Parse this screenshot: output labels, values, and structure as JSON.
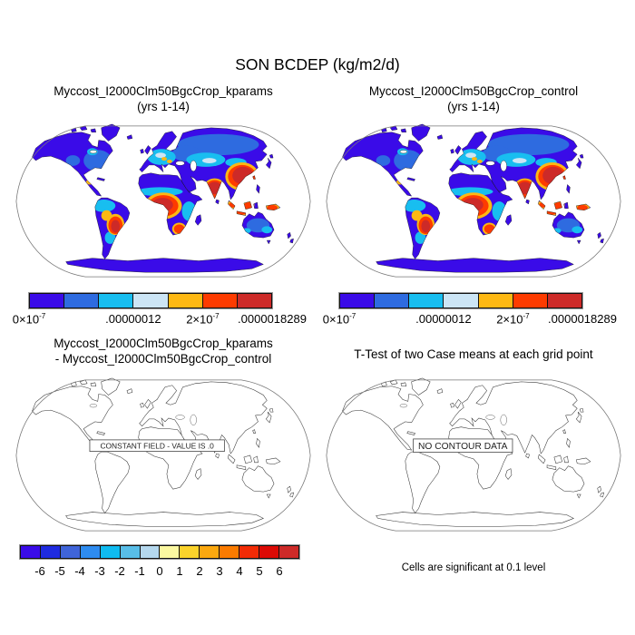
{
  "figure_title": "SON BCDEP (kg/m2/d)",
  "panels": [
    {
      "id": "kparams",
      "title1": "Myccost_I2000Clm50BgcCrop_kparams",
      "title2": "(yrs 1-14)"
    },
    {
      "id": "control",
      "title1": "Myccost_I2000Clm50BgcCrop_control",
      "title2": "(yrs 1-14)"
    },
    {
      "id": "difference",
      "title1": "Myccost_I2000Clm50BgcCrop_kparams",
      "title2": "- Myccost_I2000Clm50BgcCrop_control",
      "annotation": "CONSTANT FIELD - VALUE IS .0"
    },
    {
      "id": "ttest",
      "title1": "T-Test of two Case means at each grid point",
      "annotation": "NO CONTOUR DATA",
      "caption": "Cells are significant at 0.1 level"
    }
  ],
  "colorbar_top": {
    "colors": [
      "#3a0be8",
      "#2e6be0",
      "#18bef0",
      "#cce5f5",
      "#fdb813",
      "#fe3b00",
      "#cd2a28"
    ],
    "labels": [
      {
        "boundary": 0,
        "parts": [
          {
            "t": "0×10"
          },
          {
            "t": "-7",
            "sup": true
          }
        ]
      },
      {
        "boundary": 3,
        "parts": [
          {
            "t": ".00000012"
          }
        ]
      },
      {
        "boundary": 5,
        "parts": [
          {
            "t": "2×10"
          },
          {
            "t": "-7",
            "sup": true
          }
        ]
      },
      {
        "boundary": 7,
        "parts": [
          {
            "t": ".0000018289"
          }
        ]
      }
    ]
  },
  "colorbar_diff": {
    "colors": [
      "#3a0be8",
      "#1f2be0",
      "#3f64d9",
      "#2e8cf0",
      "#0fbbf0",
      "#58bee8",
      "#b5d8ee",
      "#fbf8a0",
      "#fbd32b",
      "#fba80f",
      "#fb7b00",
      "#f22b05",
      "#dc0a05",
      "#cd2a28"
    ],
    "labels": [
      "-6",
      "-5",
      "-4",
      "-3",
      "-2",
      "-1",
      "0",
      "1",
      "2",
      "3",
      "4",
      "5",
      "6"
    ]
  },
  "chart_data": [
    {
      "type": "heatmap",
      "subtype": "filled-contour-global-map",
      "panel": "top-left",
      "projection": "robinson",
      "title": "Myccost_I2000Clm50BgcCrop_kparams (yrs 1-14)",
      "variable": "SON BCDEP (kg/m2/d)",
      "n_color_bins": 7,
      "palette": [
        "#3a0be8",
        "#2e6be0",
        "#18bef0",
        "#cce5f5",
        "#fdb813",
        "#fe3b00",
        "#cd2a28"
      ],
      "colorbar_tick_labels": [
        "0×10^-7",
        ".00000012",
        "2×10^-7",
        ".0000018289"
      ],
      "high_value_regions": [
        "South Asia",
        "East Asia",
        "Southeast Asia",
        "Indonesia",
        "Central Africa",
        "southeastern Africa",
        "southern Brazil"
      ],
      "low_value_regions": [
        "North America",
        "Greenland",
        "Sahara",
        "Siberia",
        "Australia",
        "Antarctica"
      ],
      "ocean": "white (below lowest contour)"
    },
    {
      "type": "heatmap",
      "subtype": "filled-contour-global-map",
      "panel": "top-right",
      "projection": "robinson",
      "title": "Myccost_I2000Clm50BgcCrop_control (yrs 1-14)",
      "variable": "SON BCDEP (kg/m2/d)",
      "n_color_bins": 7,
      "palette": [
        "#3a0be8",
        "#2e6be0",
        "#18bef0",
        "#cce5f5",
        "#fdb813",
        "#fe3b00",
        "#cd2a28"
      ],
      "colorbar_tick_labels": [
        "0×10^-7",
        ".00000012",
        "2×10^-7",
        ".0000018289"
      ],
      "high_value_regions": [
        "South Asia",
        "East Asia",
        "Southeast Asia",
        "Indonesia",
        "Central Africa",
        "southeastern Africa",
        "southern Brazil"
      ],
      "low_value_regions": [
        "North America",
        "Greenland",
        "Sahara",
        "Siberia",
        "Australia",
        "Antarctica"
      ],
      "ocean": "white (below lowest contour)"
    },
    {
      "type": "heatmap",
      "subtype": "difference-map-outline-only",
      "panel": "bottom-left",
      "projection": "robinson",
      "title": "Myccost_I2000Clm50BgcCrop_kparams - Myccost_I2000Clm50BgcCrop_control",
      "annotation": "CONSTANT FIELD - VALUE IS .0",
      "n_color_bins": 14,
      "levels": [
        -6,
        -5,
        -4,
        -3,
        -2,
        -1,
        0,
        1,
        2,
        3,
        4,
        5,
        6
      ],
      "palette": [
        "#3a0be8",
        "#1f2be0",
        "#3f64d9",
        "#2e8cf0",
        "#0fbbf0",
        "#58bee8",
        "#b5d8ee",
        "#fbf8a0",
        "#fbd32b",
        "#fba80f",
        "#fb7b00",
        "#f22b05",
        "#dc0a05",
        "#cd2a28"
      ]
    },
    {
      "type": "heatmap",
      "subtype": "significance-map-outline-only",
      "panel": "bottom-right",
      "projection": "robinson",
      "title": "T-Test of two Case means at each grid point",
      "annotation": "NO CONTOUR DATA",
      "caption": "Cells are significant at 0.1 level"
    }
  ]
}
